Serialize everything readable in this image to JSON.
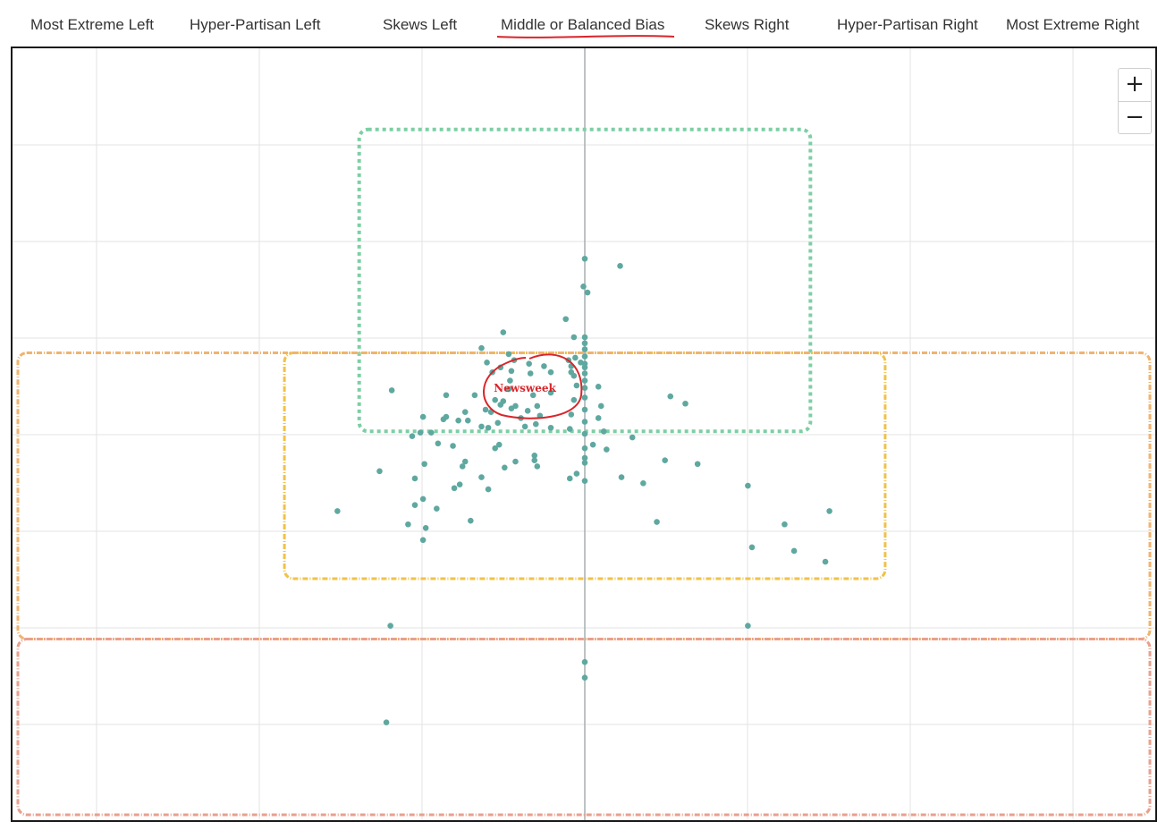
{
  "header": {
    "columns": [
      "Most Extreme Left",
      "Hyper-Partisan Left",
      "Skews Left",
      "Middle or Balanced Bias",
      "Skews Right",
      "Hyper-Partisan Right",
      "Most Extreme Right"
    ]
  },
  "zoom": {
    "in_label": "+",
    "out_label": "−"
  },
  "annotation": {
    "label": "Newsweek"
  },
  "colors": {
    "dot": "#5fa8a0",
    "center_line": "#a9adb2",
    "grid": "#e3e3e3",
    "green_box": "#7ccfa4",
    "yellow_box": "#f0c24a",
    "orange_box": "#f0b36f",
    "red_box": "#e8a08e",
    "annotation": "#d9252a"
  },
  "chart_data": {
    "type": "scatter",
    "xlabel": "",
    "ylabel": "",
    "xlim": [
      -42,
      42
    ],
    "ylim": [
      0,
      64
    ],
    "points": [
      {
        "x": 0,
        "y": 46.5
      },
      {
        "x": 0.2,
        "y": 43.7
      },
      {
        "x": -0.1,
        "y": 44.2
      },
      {
        "x": 2.6,
        "y": 45.9
      },
      {
        "x": -1.4,
        "y": 41.5
      },
      {
        "x": -6,
        "y": 40.4
      },
      {
        "x": -0.8,
        "y": 40
      },
      {
        "x": 0,
        "y": 40
      },
      {
        "x": 0,
        "y": 39.5
      },
      {
        "x": 0,
        "y": 39
      },
      {
        "x": 0,
        "y": 38.4
      },
      {
        "x": 0,
        "y": 37.8
      },
      {
        "x": 0,
        "y": 37.5
      },
      {
        "x": 0,
        "y": 37
      },
      {
        "x": 0,
        "y": 36.4
      },
      {
        "x": 0,
        "y": 35.8
      },
      {
        "x": 0,
        "y": 35
      },
      {
        "x": 0,
        "y": 34
      },
      {
        "x": 0,
        "y": 33
      },
      {
        "x": 0,
        "y": 32
      },
      {
        "x": 0,
        "y": 30.8
      },
      {
        "x": 0,
        "y": 30
      },
      {
        "x": -0.7,
        "y": 38.3
      },
      {
        "x": -1.2,
        "y": 38.1
      },
      {
        "x": -1,
        "y": 37.6
      },
      {
        "x": -0.3,
        "y": 37.9
      },
      {
        "x": -1,
        "y": 37.1
      },
      {
        "x": 1,
        "y": 35.9
      },
      {
        "x": -0.8,
        "y": 36.8
      },
      {
        "x": -0.6,
        "y": 36
      },
      {
        "x": -0.8,
        "y": 34.8
      },
      {
        "x": 1.2,
        "y": 34.3
      },
      {
        "x": -1,
        "y": 33.6
      },
      {
        "x": 1,
        "y": 33.3
      },
      {
        "x": -2.5,
        "y": 32.5
      },
      {
        "x": -1.1,
        "y": 32.4
      },
      {
        "x": 0.6,
        "y": 31.1
      },
      {
        "x": 1.4,
        "y": 32.2
      },
      {
        "x": 1.6,
        "y": 30.7
      },
      {
        "x": -5.6,
        "y": 38.6
      },
      {
        "x": -5.2,
        "y": 38.1
      },
      {
        "x": -7.6,
        "y": 39.1
      },
      {
        "x": -7.2,
        "y": 37.9
      },
      {
        "x": -6.2,
        "y": 37.5
      },
      {
        "x": -5.4,
        "y": 37.2
      },
      {
        "x": -4.1,
        "y": 37.8
      },
      {
        "x": -3,
        "y": 37.6
      },
      {
        "x": -4,
        "y": 37
      },
      {
        "x": -6.8,
        "y": 37.1
      },
      {
        "x": -2.5,
        "y": 37.1
      },
      {
        "x": -5.5,
        "y": 36.4
      },
      {
        "x": -3.8,
        "y": 35.2
      },
      {
        "x": -2.5,
        "y": 35.4
      },
      {
        "x": -8.1,
        "y": 35.2
      },
      {
        "x": -6,
        "y": 34.7
      },
      {
        "x": -3.5,
        "y": 34.3
      },
      {
        "x": -5.4,
        "y": 34.1
      },
      {
        "x": -7.3,
        "y": 34
      },
      {
        "x": -4.7,
        "y": 33.3
      },
      {
        "x": -5.1,
        "y": 34.3
      },
      {
        "x": -4.2,
        "y": 33.9
      },
      {
        "x": -3.3,
        "y": 33.5
      },
      {
        "x": -4.4,
        "y": 32.6
      },
      {
        "x": -3.6,
        "y": 32.8
      },
      {
        "x": -5.6,
        "y": 35.7
      },
      {
        "x": -10.2,
        "y": 35.2
      },
      {
        "x": -6.6,
        "y": 34.8
      },
      {
        "x": -6.9,
        "y": 33.8
      },
      {
        "x": -8.8,
        "y": 33.8
      },
      {
        "x": -11.9,
        "y": 33.4
      },
      {
        "x": -10.2,
        "y": 33.4
      },
      {
        "x": -12.1,
        "y": 32.1
      },
      {
        "x": -11.3,
        "y": 32.1
      },
      {
        "x": -10.4,
        "y": 33.2
      },
      {
        "x": -8.6,
        "y": 33.1
      },
      {
        "x": -9.3,
        "y": 33.1
      },
      {
        "x": -7.6,
        "y": 32.6
      },
      {
        "x": -7.1,
        "y": 32.5
      },
      {
        "x": -6.4,
        "y": 32.9
      },
      {
        "x": -6.2,
        "y": 34.4
      },
      {
        "x": -14.2,
        "y": 35.6
      },
      {
        "x": -10.8,
        "y": 31.2
      },
      {
        "x": -12.7,
        "y": 31.8
      },
      {
        "x": -9.7,
        "y": 31
      },
      {
        "x": -8.8,
        "y": 29.7
      },
      {
        "x": -6.3,
        "y": 31.1
      },
      {
        "x": -6.6,
        "y": 30.8
      },
      {
        "x": -5.1,
        "y": 29.7
      },
      {
        "x": -3.7,
        "y": 30.2
      },
      {
        "x": -5.9,
        "y": 29.2
      },
      {
        "x": -3.7,
        "y": 29.8
      },
      {
        "x": -9,
        "y": 29.3
      },
      {
        "x": -11.8,
        "y": 29.5
      },
      {
        "x": -15.1,
        "y": 28.9
      },
      {
        "x": -12.5,
        "y": 28.3
      },
      {
        "x": -11.9,
        "y": 26.6
      },
      {
        "x": -12.5,
        "y": 26.1
      },
      {
        "x": -10.9,
        "y": 25.8
      },
      {
        "x": -9.2,
        "y": 27.8
      },
      {
        "x": -9.6,
        "y": 27.5
      },
      {
        "x": -7.6,
        "y": 28.4
      },
      {
        "x": -7.1,
        "y": 27.4
      },
      {
        "x": -8.4,
        "y": 24.8
      },
      {
        "x": -13,
        "y": 24.5
      },
      {
        "x": -11.7,
        "y": 24.2
      },
      {
        "x": -11.9,
        "y": 23.2
      },
      {
        "x": -18.2,
        "y": 25.6
      },
      {
        "x": -1.1,
        "y": 28.3
      },
      {
        "x": -0.6,
        "y": 28.7
      },
      {
        "x": 0,
        "y": 28.1
      },
      {
        "x": 0,
        "y": 29.6
      },
      {
        "x": -3.5,
        "y": 29.3
      },
      {
        "x": 2.7,
        "y": 28.4
      },
      {
        "x": 4.3,
        "y": 27.9
      },
      {
        "x": 3.5,
        "y": 31.7
      },
      {
        "x": 6.3,
        "y": 35.1
      },
      {
        "x": 7.4,
        "y": 34.5
      },
      {
        "x": 5.9,
        "y": 29.8
      },
      {
        "x": 8.3,
        "y": 29.5
      },
      {
        "x": 5.3,
        "y": 24.7
      },
      {
        "x": 12,
        "y": 27.7
      },
      {
        "x": 12.3,
        "y": 22.6
      },
      {
        "x": 14.7,
        "y": 24.5
      },
      {
        "x": 15.4,
        "y": 22.3
      },
      {
        "x": 17.7,
        "y": 21.4
      },
      {
        "x": 18,
        "y": 25.6
      },
      {
        "x": -14.3,
        "y": 16.1
      },
      {
        "x": 12,
        "y": 16.1
      },
      {
        "x": 0,
        "y": 13.1
      },
      {
        "x": 0,
        "y": 11.8
      },
      {
        "x": -14.6,
        "y": 8.1
      }
    ],
    "regions": [
      {
        "color_key": "green_box",
        "x": [
          -16.6,
          16.6
        ],
        "y": [
          32.2,
          57.2
        ]
      },
      {
        "color_key": "yellow_box",
        "x": [
          -22.1,
          22.1
        ],
        "y": [
          20,
          38.7
        ]
      },
      {
        "color_key": "orange_box",
        "x": [
          -42,
          42
        ],
        "y": [
          15,
          38.7
        ]
      },
      {
        "color_key": "red_box",
        "x": [
          -42,
          42
        ],
        "y": [
          0.4,
          15
        ]
      }
    ],
    "grid": true
  }
}
